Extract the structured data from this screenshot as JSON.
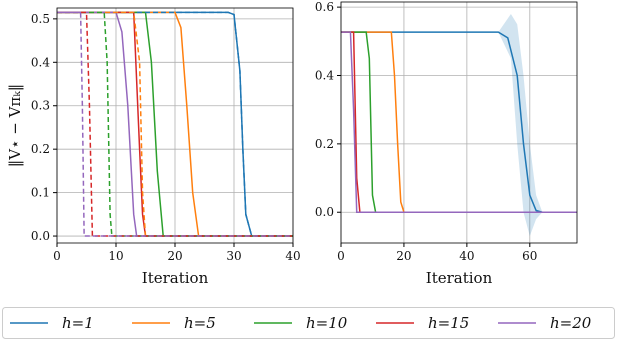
{
  "chart_data": [
    {
      "type": "line",
      "xlabel": "Iteration",
      "ylabel": "‖V⋆ − Vπₖ‖",
      "xlim": [
        0,
        40
      ],
      "xticks": [
        0,
        10,
        20,
        30,
        40
      ],
      "ylim": [
        -0.016,
        0.525
      ],
      "yticks": [
        {
          "value": 0,
          "label": "0.0"
        },
        {
          "value": 0.1,
          "label": "0.1"
        },
        {
          "value": 0.2,
          "label": "0.2"
        },
        {
          "value": 0.3,
          "label": "0.3"
        },
        {
          "value": 0.4,
          "label": "0.4"
        },
        {
          "value": 0.5,
          "label": "0.5"
        }
      ],
      "grid": true,
      "series": [
        {
          "name": "h=1",
          "color": "#1f77b4",
          "x": [
            0,
            29,
            30,
            31,
            31.5,
            32,
            33,
            40
          ],
          "values": [
            0.515,
            0.515,
            0.51,
            0.38,
            0.2,
            0.05,
            0,
            0
          ]
        },
        {
          "name": "h=5",
          "color": "#ff7f0e",
          "x": [
            0,
            20,
            21,
            22,
            23,
            24,
            40
          ],
          "values": [
            0.515,
            0.515,
            0.48,
            0.3,
            0.1,
            0,
            0
          ]
        },
        {
          "name": "h=10",
          "color": "#2ca02c",
          "x": [
            0,
            15,
            16,
            17,
            18,
            40
          ],
          "values": [
            0.515,
            0.515,
            0.4,
            0.15,
            0,
            0
          ]
        },
        {
          "name": "h=15",
          "color": "#d62728",
          "x": [
            0,
            13,
            14,
            14.5,
            15,
            40
          ],
          "values": [
            0.515,
            0.515,
            0.2,
            0.05,
            0,
            0
          ]
        },
        {
          "name": "h=20",
          "color": "#9467bd",
          "x": [
            0,
            10,
            11,
            12,
            13,
            13.5,
            40
          ],
          "values": [
            0.515,
            0.515,
            0.47,
            0.3,
            0.05,
            0,
            0
          ]
        },
        {
          "dashed": true,
          "color": "#1f77b4",
          "x": [
            0,
            29,
            30,
            31,
            31.5,
            32,
            33,
            40
          ],
          "values": [
            0.515,
            0.515,
            0.51,
            0.38,
            0.2,
            0.05,
            0,
            0
          ]
        },
        {
          "dashed": true,
          "color": "#ff7f0e",
          "x": [
            0,
            13,
            14,
            14.5,
            15,
            40
          ],
          "values": [
            0.515,
            0.515,
            0.4,
            0.1,
            0,
            0
          ]
        },
        {
          "dashed": true,
          "color": "#2ca02c",
          "x": [
            0,
            8,
            8.5,
            9,
            9.3,
            40
          ],
          "values": [
            0.515,
            0.515,
            0.4,
            0.05,
            0,
            0
          ]
        },
        {
          "dashed": true,
          "color": "#d62728",
          "x": [
            0,
            5,
            5.5,
            6,
            40
          ],
          "values": [
            0.515,
            0.515,
            0.3,
            0,
            0
          ]
        },
        {
          "dashed": true,
          "color": "#9467bd",
          "x": [
            0,
            4,
            4.3,
            4.6,
            40
          ],
          "values": [
            0.515,
            0.515,
            0.3,
            0,
            0
          ]
        }
      ]
    },
    {
      "type": "line",
      "xlabel": "Iteration",
      "xlim": [
        0,
        75
      ],
      "xticks": [
        0,
        20,
        40,
        60
      ],
      "ylim": [
        -0.09,
        0.615
      ],
      "yticks": [
        {
          "value": 0,
          "label": "0.0"
        },
        {
          "value": 0.2,
          "label": "0.2"
        },
        {
          "value": 0.4,
          "label": "0.4"
        },
        {
          "value": 0.6,
          "label": "0.6"
        }
      ],
      "grid": true,
      "series": [
        {
          "color": "#1f77b4",
          "x": [
            0,
            50,
            53,
            56,
            58,
            60,
            62,
            64,
            75
          ],
          "values": [
            0.527,
            0.527,
            0.51,
            0.4,
            0.2,
            0.05,
            0.005,
            0,
            0
          ],
          "band_x": [
            50,
            54,
            56,
            58,
            60,
            62,
            64
          ],
          "band_lower": [
            0.527,
            0.45,
            0.2,
            0,
            -0.07,
            -0.02,
            0
          ],
          "band_upper": [
            0.527,
            0.58,
            0.55,
            0.4,
            0.2,
            0.05,
            0
          ]
        },
        {
          "color": "#ff7f0e",
          "x": [
            0,
            16,
            17,
            18,
            19,
            20,
            75
          ],
          "values": [
            0.527,
            0.527,
            0.4,
            0.2,
            0.03,
            0,
            0
          ]
        },
        {
          "color": "#2ca02c",
          "x": [
            0,
            8,
            9,
            10,
            11,
            75
          ],
          "values": [
            0.527,
            0.527,
            0.45,
            0.05,
            0,
            0
          ]
        },
        {
          "color": "#d62728",
          "x": [
            0,
            4,
            5,
            6,
            75
          ],
          "values": [
            0.527,
            0.527,
            0.1,
            0,
            0
          ]
        },
        {
          "color": "#9467bd",
          "x": [
            0,
            3,
            4,
            5,
            75
          ],
          "values": [
            0.527,
            0.527,
            0.3,
            0,
            0
          ]
        }
      ]
    }
  ]
}
